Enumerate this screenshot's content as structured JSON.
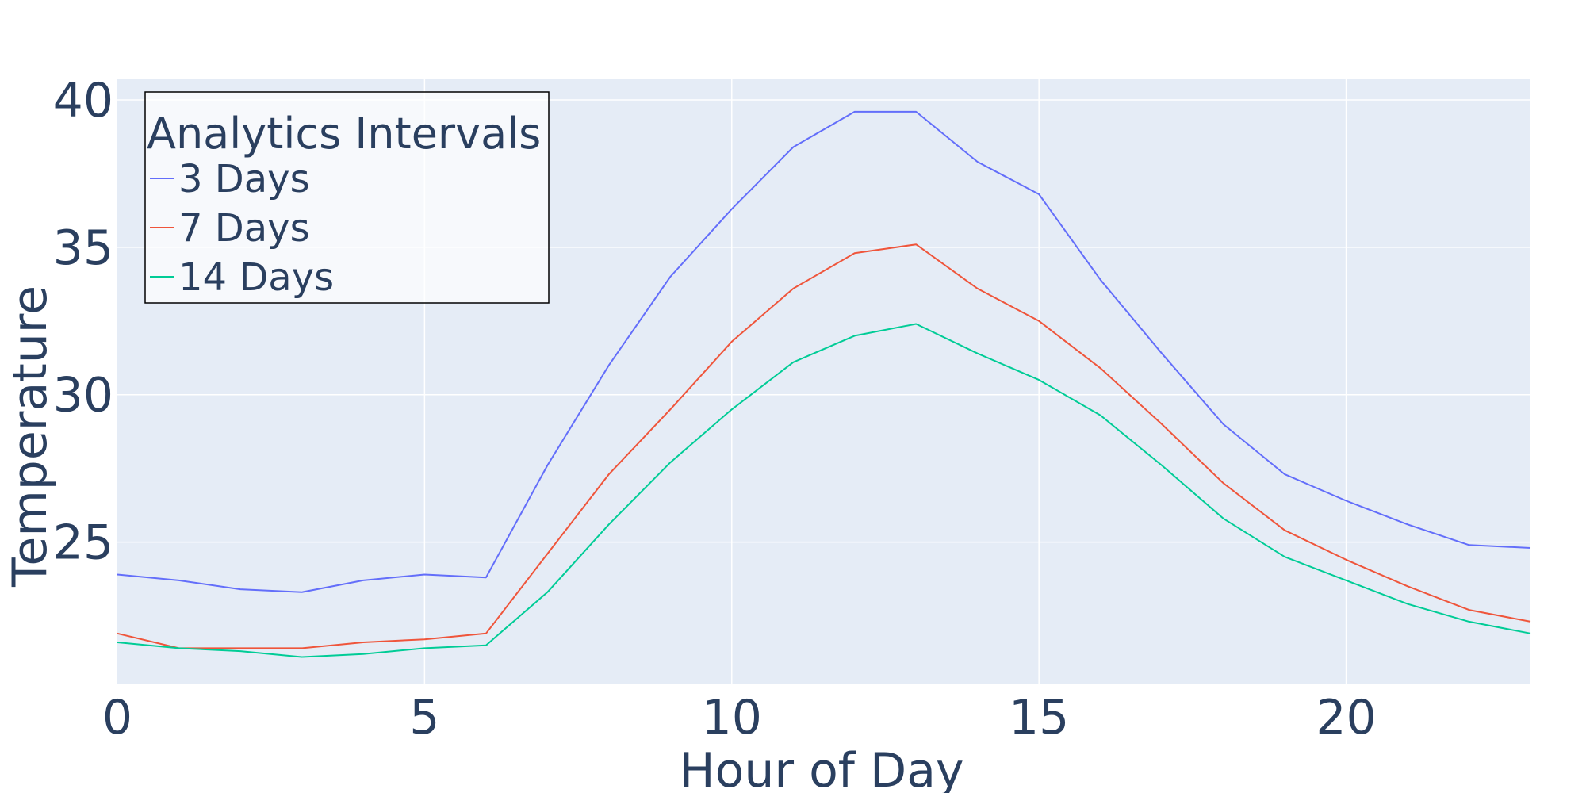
{
  "chart_data": {
    "type": "line",
    "xlabel": "Hour of Day",
    "ylabel": "Temperature",
    "xlim": [
      0,
      23
    ],
    "ylim": [
      20.2,
      40.7
    ],
    "x_ticks": [
      0,
      5,
      10,
      15,
      20
    ],
    "y_ticks": [
      25,
      30,
      35,
      40
    ],
    "grid": true,
    "legend": {
      "title": "Analytics Intervals",
      "placement": "top-left"
    },
    "x": [
      0,
      1,
      2,
      3,
      4,
      5,
      6,
      7,
      8,
      9,
      10,
      11,
      12,
      13,
      14,
      15,
      16,
      17,
      18,
      19,
      20,
      21,
      22,
      23
    ],
    "series": [
      {
        "name": "3 Days",
        "color": "#636efa",
        "values": [
          23.9,
          23.7,
          23.4,
          23.3,
          23.7,
          23.9,
          23.8,
          27.6,
          31.0,
          34.0,
          36.3,
          38.4,
          39.6,
          39.6,
          37.9,
          36.8,
          33.9,
          31.4,
          29.0,
          27.3,
          26.4,
          25.6,
          24.9,
          24.8
        ]
      },
      {
        "name": "7 Days",
        "color": "#ef553b",
        "values": [
          21.9,
          21.4,
          21.4,
          21.4,
          21.6,
          21.7,
          21.9,
          24.6,
          27.3,
          29.5,
          31.8,
          33.6,
          34.8,
          35.1,
          33.6,
          32.5,
          30.9,
          29.0,
          27.0,
          25.4,
          24.4,
          23.5,
          22.7,
          22.3
        ]
      },
      {
        "name": "14 Days",
        "color": "#00cc96",
        "values": [
          21.6,
          21.4,
          21.3,
          21.1,
          21.2,
          21.4,
          21.5,
          23.3,
          25.6,
          27.7,
          29.5,
          31.1,
          32.0,
          32.4,
          31.4,
          30.5,
          29.3,
          27.6,
          25.8,
          24.5,
          23.7,
          22.9,
          22.3,
          21.9
        ]
      }
    ]
  }
}
